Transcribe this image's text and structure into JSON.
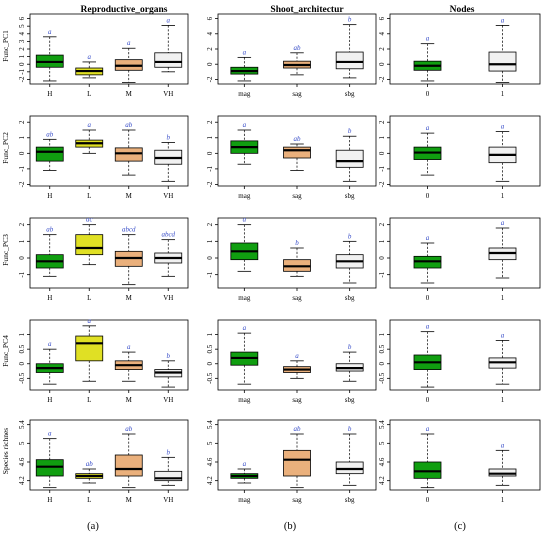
{
  "figure": {
    "col_titles": [
      "Reproductive_organs",
      "Shoot_architectur",
      "Nodes"
    ],
    "panel_tags": [
      "(a)",
      "(b)",
      "(c)"
    ],
    "row_labels": [
      "Func_PC1",
      "Func_PC2",
      "Func_PC3",
      "Func_PC4",
      "Species richnes"
    ]
  },
  "colors": {
    "green": "#109e10",
    "yellow": "#e0e024",
    "orange": "#eab07c",
    "white": "#f1f1f1",
    "significance_text": "#3a4fc9"
  },
  "chart_data": [
    {
      "type": "box",
      "row": 0,
      "col": 0,
      "ylabel": "Func_PC1",
      "yticks": [
        -2,
        -1,
        0,
        1,
        2,
        3,
        4,
        5,
        6
      ],
      "ylim": [
        -2.6,
        6.6
      ],
      "categories": [
        "H",
        "L",
        "M",
        "VH"
      ],
      "fills": [
        "green",
        "yellow",
        "orange",
        "white"
      ],
      "letters": [
        "a",
        "a",
        "a",
        "a"
      ],
      "boxes": [
        [
          -2.2,
          -0.4,
          0.3,
          1.2,
          3.6
        ],
        [
          -1.8,
          -1.4,
          -0.9,
          -0.5,
          0.3
        ],
        [
          -2.4,
          -0.8,
          -0.2,
          0.6,
          2.1
        ],
        [
          -1.0,
          -0.4,
          0.3,
          1.5,
          5.1
        ]
      ]
    },
    {
      "type": "box",
      "row": 0,
      "col": 1,
      "ylabel": "",
      "yticks": [
        -2,
        0,
        2,
        4,
        6
      ],
      "ylim": [
        -2.6,
        6.6
      ],
      "categories": [
        "mag",
        "sag",
        "sbg"
      ],
      "fills": [
        "green",
        "orange",
        "white"
      ],
      "letters": [
        "a",
        "ab",
        "b"
      ],
      "boxes": [
        [
          -2.2,
          -1.3,
          -0.9,
          -0.4,
          0.9
        ],
        [
          -1.4,
          -0.5,
          -0.1,
          0.4,
          1.5
        ],
        [
          -1.8,
          -0.6,
          0.3,
          1.6,
          5.2
        ]
      ]
    },
    {
      "type": "box",
      "row": 0,
      "col": 2,
      "ylabel": "",
      "yticks": [
        -2,
        0,
        2,
        4,
        6
      ],
      "ylim": [
        -2.6,
        6.6
      ],
      "categories": [
        "0",
        "1"
      ],
      "fills": [
        "green",
        "white"
      ],
      "letters": [
        "a",
        "a"
      ],
      "boxes": [
        [
          -2.2,
          -0.8,
          -0.2,
          0.4,
          2.7
        ],
        [
          -2.4,
          -0.9,
          0.0,
          1.6,
          5.1
        ]
      ]
    },
    {
      "type": "box",
      "row": 1,
      "col": 0,
      "ylabel": "Func_PC2",
      "yticks": [
        -2,
        -1,
        0,
        1,
        2
      ],
      "ylim": [
        -2.1,
        2.4
      ],
      "categories": [
        "H",
        "L",
        "M",
        "VH"
      ],
      "fills": [
        "green",
        "yellow",
        "orange",
        "white"
      ],
      "letters": [
        "ab",
        "a",
        "ab",
        "b"
      ],
      "boxes": [
        [
          -1.1,
          -0.5,
          0.1,
          0.4,
          0.9
        ],
        [
          0.0,
          0.4,
          0.65,
          0.85,
          1.5
        ],
        [
          -1.4,
          -0.5,
          0.0,
          0.35,
          1.5
        ],
        [
          -1.8,
          -0.7,
          -0.3,
          0.2,
          0.7
        ]
      ]
    },
    {
      "type": "box",
      "row": 1,
      "col": 1,
      "ylabel": "",
      "yticks": [
        -2,
        -1,
        0,
        1,
        2
      ],
      "ylim": [
        -2.1,
        2.4
      ],
      "categories": [
        "mag",
        "sag",
        "sbg"
      ],
      "fills": [
        "green",
        "orange",
        "white"
      ],
      "letters": [
        "a",
        "ab",
        "b"
      ],
      "boxes": [
        [
          -0.7,
          0.0,
          0.4,
          0.8,
          1.5
        ],
        [
          -1.1,
          -0.3,
          0.2,
          0.4,
          0.6
        ],
        [
          -1.8,
          -0.9,
          -0.5,
          0.2,
          1.1
        ]
      ]
    },
    {
      "type": "box",
      "row": 1,
      "col": 2,
      "ylabel": "",
      "yticks": [
        -2,
        -1,
        0,
        1,
        2
      ],
      "ylim": [
        -2.1,
        2.4
      ],
      "categories": [
        "0",
        "1"
      ],
      "fills": [
        "green",
        "white"
      ],
      "letters": [
        "a",
        "a"
      ],
      "boxes": [
        [
          -1.4,
          -0.4,
          0.05,
          0.4,
          1.3
        ],
        [
          -1.8,
          -0.6,
          -0.1,
          0.4,
          1.4
        ]
      ]
    },
    {
      "type": "box",
      "row": 2,
      "col": 0,
      "ylabel": "Func_PC3",
      "yticks": [
        -1,
        0,
        1,
        2
      ],
      "ylim": [
        -1.8,
        2.4
      ],
      "categories": [
        "H",
        "L",
        "M",
        "VH"
      ],
      "fills": [
        "green",
        "yellow",
        "orange",
        "white"
      ],
      "letters": [
        "ab",
        "ac",
        "abcd",
        "abcd"
      ],
      "boxes": [
        [
          -1.1,
          -0.6,
          -0.2,
          0.2,
          1.4
        ],
        [
          -0.4,
          0.2,
          0.6,
          1.4,
          2.0
        ],
        [
          -1.6,
          -0.5,
          0.0,
          0.4,
          1.4
        ],
        [
          -1.1,
          -0.3,
          0.0,
          0.3,
          1.1
        ]
      ]
    },
    {
      "type": "box",
      "row": 2,
      "col": 1,
      "ylabel": "",
      "yticks": [
        -1,
        0,
        1,
        2
      ],
      "ylim": [
        -1.8,
        2.4
      ],
      "categories": [
        "mag",
        "sag",
        "sbg"
      ],
      "fills": [
        "green",
        "orange",
        "white"
      ],
      "letters": [
        "a",
        "b",
        "b"
      ],
      "boxes": [
        [
          -0.8,
          -0.1,
          0.4,
          0.9,
          2.0
        ],
        [
          -1.1,
          -0.8,
          -0.5,
          -0.1,
          0.6
        ],
        [
          -1.5,
          -0.6,
          -0.2,
          0.2,
          1.0
        ]
      ]
    },
    {
      "type": "box",
      "row": 2,
      "col": 2,
      "ylabel": "",
      "yticks": [
        -1,
        0,
        1,
        2
      ],
      "ylim": [
        -1.8,
        2.4
      ],
      "categories": [
        "0",
        "1"
      ],
      "fills": [
        "green",
        "white"
      ],
      "letters": [
        "a",
        "a"
      ],
      "boxes": [
        [
          -1.5,
          -0.6,
          -0.2,
          0.1,
          0.9
        ],
        [
          -1.2,
          -0.1,
          0.3,
          0.6,
          1.8
        ]
      ]
    },
    {
      "type": "box",
      "row": 3,
      "col": 0,
      "ylabel": "Func_PC4",
      "yticks": [
        -0.5,
        0,
        0.5,
        1
      ],
      "ylim": [
        -0.9,
        1.5
      ],
      "categories": [
        "H",
        "L",
        "M",
        "VH"
      ],
      "fills": [
        "green",
        "yellow",
        "orange",
        "white"
      ],
      "letters": [
        "a",
        "a",
        "a",
        "b"
      ],
      "boxes": [
        [
          -0.7,
          -0.3,
          -0.15,
          0.0,
          0.5
        ],
        [
          -0.6,
          0.1,
          0.7,
          0.95,
          1.3
        ],
        [
          -0.6,
          -0.2,
          -0.05,
          0.1,
          0.4
        ],
        [
          -0.8,
          -0.45,
          -0.3,
          -0.2,
          0.1
        ]
      ]
    },
    {
      "type": "box",
      "row": 3,
      "col": 1,
      "ylabel": "",
      "yticks": [
        -0.5,
        0,
        0.5,
        1
      ],
      "ylim": [
        -0.9,
        1.5
      ],
      "categories": [
        "mag",
        "sag",
        "sbg"
      ],
      "fills": [
        "green",
        "orange",
        "white"
      ],
      "letters": [
        "a",
        "a",
        "b"
      ],
      "boxes": [
        [
          -0.7,
          -0.05,
          0.2,
          0.4,
          1.05
        ],
        [
          -0.5,
          -0.3,
          -0.2,
          -0.1,
          0.1
        ],
        [
          -0.6,
          -0.25,
          -0.15,
          0.0,
          0.4
        ]
      ]
    },
    {
      "type": "box",
      "row": 3,
      "col": 2,
      "ylabel": "",
      "yticks": [
        -0.5,
        0,
        0.5,
        1
      ],
      "ylim": [
        -0.9,
        1.5
      ],
      "categories": [
        "0",
        "1"
      ],
      "fills": [
        "green",
        "white"
      ],
      "letters": [
        "a",
        "a"
      ],
      "boxes": [
        [
          -0.8,
          -0.2,
          0.05,
          0.3,
          1.1
        ],
        [
          -0.7,
          -0.15,
          0.05,
          0.2,
          0.8
        ]
      ]
    },
    {
      "type": "box",
      "row": 4,
      "col": 0,
      "ylabel": "Species richnes",
      "yticks": [
        4.2,
        4.6,
        5.0,
        5.4
      ],
      "ylim": [
        4.0,
        5.5
      ],
      "categories": [
        "H",
        "L",
        "M",
        "VH"
      ],
      "fills": [
        "green",
        "yellow",
        "orange",
        "white"
      ],
      "letters": [
        "a",
        "ab",
        "ab",
        "b"
      ],
      "boxes": [
        [
          4.05,
          4.3,
          4.5,
          4.65,
          5.1
        ],
        [
          4.15,
          4.25,
          4.3,
          4.35,
          4.45
        ],
        [
          4.05,
          4.3,
          4.45,
          4.75,
          5.2
        ],
        [
          4.1,
          4.2,
          4.25,
          4.4,
          4.7
        ]
      ]
    },
    {
      "type": "box",
      "row": 4,
      "col": 1,
      "ylabel": "",
      "yticks": [
        4.2,
        4.6,
        5.0,
        5.4
      ],
      "ylim": [
        4.0,
        5.5
      ],
      "categories": [
        "mag",
        "sag",
        "sbg"
      ],
      "fills": [
        "green",
        "orange",
        "white"
      ],
      "letters": [
        "a",
        "ab",
        "b"
      ],
      "boxes": [
        [
          4.15,
          4.25,
          4.3,
          4.35,
          4.45
        ],
        [
          4.05,
          4.3,
          4.65,
          4.85,
          5.2
        ],
        [
          4.1,
          4.35,
          4.45,
          4.6,
          5.2
        ]
      ]
    },
    {
      "type": "box",
      "row": 4,
      "col": 2,
      "ylabel": "",
      "yticks": [
        4.2,
        4.6,
        5.0,
        5.4
      ],
      "ylim": [
        4.0,
        5.5
      ],
      "categories": [
        "0",
        "1"
      ],
      "fills": [
        "green",
        "white"
      ],
      "letters": [
        "a",
        "a"
      ],
      "boxes": [
        [
          4.05,
          4.25,
          4.4,
          4.6,
          5.2
        ],
        [
          4.1,
          4.3,
          4.35,
          4.45,
          4.85
        ]
      ]
    }
  ]
}
